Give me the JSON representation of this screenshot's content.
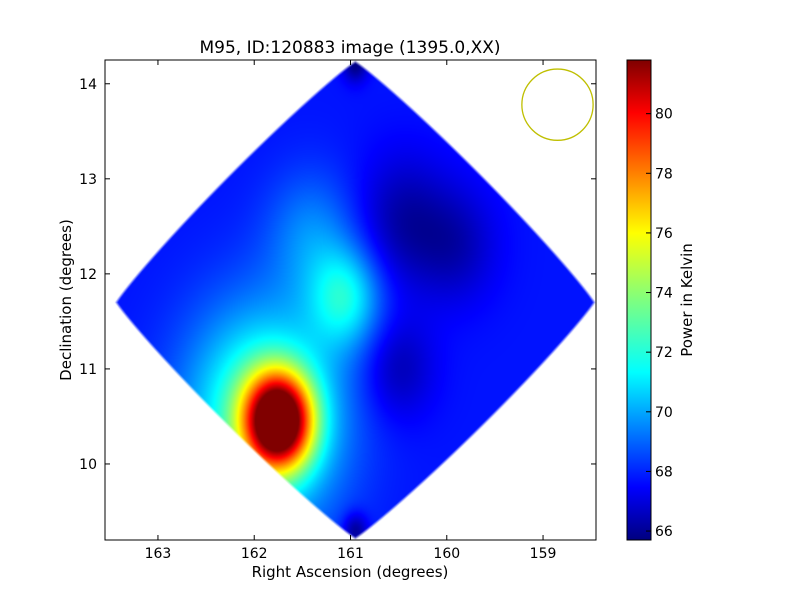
{
  "chart_data": {
    "type": "heatmap",
    "title": "M95, ID:120883 image (1395.0,XX)",
    "xlabel": "Right Ascension (degrees)",
    "ylabel": "Declination (degrees)",
    "xlim": [
      163.55,
      158.45
    ],
    "ylim": [
      9.2,
      14.25
    ],
    "x_ticks": [
      163,
      162,
      161,
      160,
      159
    ],
    "y_ticks": [
      10,
      11,
      12,
      13,
      14
    ],
    "grid": false,
    "colorbar": {
      "label": "Power in Kelvin",
      "range": [
        65.7,
        81.8
      ],
      "ticks": [
        66,
        68,
        70,
        72,
        74,
        76,
        78,
        80
      ],
      "colormap": "jet"
    },
    "map": {
      "center": [
        160.95,
        11.7
      ],
      "corners": {
        "top": [
          160.95,
          14.25
        ],
        "bottom": [
          160.95,
          9.2
        ],
        "left": [
          163.5,
          11.7
        ],
        "right": [
          158.5,
          11.7
        ]
      },
      "background_level": 68.0,
      "features": [
        {
          "ra": 161.75,
          "dec": 10.45,
          "value": 81.8,
          "sigma": 0.32,
          "kind": "peak"
        },
        {
          "ra": 161.9,
          "dec": 10.5,
          "value": 73.5,
          "sigma": 0.75,
          "kind": "warm region"
        },
        {
          "ra": 161.05,
          "dec": 11.75,
          "value": 71.5,
          "sigma": 0.35,
          "kind": "ridge"
        },
        {
          "ra": 161.4,
          "dec": 12.4,
          "value": 69.8,
          "sigma": 0.45,
          "kind": "ridge"
        },
        {
          "ra": 160.45,
          "dec": 12.55,
          "value": 66.3,
          "sigma": 0.45,
          "kind": "trough"
        },
        {
          "ra": 159.9,
          "dec": 12.3,
          "value": 66.6,
          "sigma": 0.4,
          "kind": "trough"
        },
        {
          "ra": 160.5,
          "dec": 11.0,
          "value": 66.5,
          "sigma": 0.35,
          "kind": "trough"
        },
        {
          "ra": 160.95,
          "dec": 14.2,
          "value": 65.8,
          "sigma": 0.12,
          "kind": "edge"
        },
        {
          "ra": 160.95,
          "dec": 9.3,
          "value": 65.8,
          "sigma": 0.12,
          "kind": "edge"
        }
      ]
    },
    "beam_circle": {
      "ra": 158.85,
      "dec": 13.78,
      "radius_deg": 0.37,
      "color": "#bfbf00"
    }
  }
}
